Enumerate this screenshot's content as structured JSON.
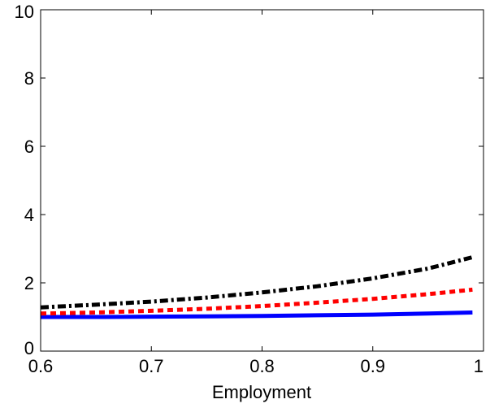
{
  "chart_data": {
    "type": "line",
    "title": "",
    "xlabel": "Employment",
    "ylabel": "",
    "xlim": [
      0.6,
      1.0
    ],
    "ylim": [
      0,
      10
    ],
    "xticks": [
      0.6,
      0.7,
      0.8,
      0.9,
      1.0
    ],
    "xtick_labels": [
      "0.6",
      "0.7",
      "0.8",
      "0.9",
      "1"
    ],
    "yticks": [
      0,
      2,
      4,
      6,
      8,
      10
    ],
    "ytick_labels": [
      "0",
      "2",
      "4",
      "6",
      "8",
      "10"
    ],
    "grid": false,
    "legend": "none",
    "series": [
      {
        "color": "#0000ff",
        "style": "solid",
        "x": [
          0.6,
          0.65,
          0.7,
          0.75,
          0.8,
          0.85,
          0.9,
          0.95,
          0.99
        ],
        "y": [
          1.0,
          1.0,
          1.01,
          1.02,
          1.03,
          1.05,
          1.07,
          1.1,
          1.13
        ]
      },
      {
        "color": "#ff0000",
        "style": "dotted",
        "x": [
          0.6,
          0.65,
          0.7,
          0.75,
          0.8,
          0.85,
          0.9,
          0.95,
          0.99
        ],
        "y": [
          1.1,
          1.13,
          1.18,
          1.24,
          1.32,
          1.42,
          1.53,
          1.67,
          1.8
        ]
      },
      {
        "color": "#000000",
        "style": "dashdot",
        "x": [
          0.6,
          0.65,
          0.7,
          0.75,
          0.8,
          0.85,
          0.9,
          0.95,
          0.99
        ],
        "y": [
          1.28,
          1.36,
          1.45,
          1.57,
          1.72,
          1.9,
          2.13,
          2.42,
          2.75
        ]
      }
    ]
  }
}
